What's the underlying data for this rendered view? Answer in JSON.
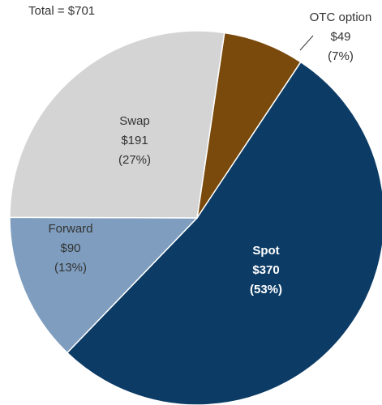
{
  "chart_data": {
    "type": "pie",
    "title": "Total = $701",
    "categories": [
      "OTC option",
      "Spot",
      "Forward",
      "Swap"
    ],
    "values": [
      49,
      370,
      90,
      191
    ],
    "value_labels": [
      "$49",
      "$370",
      "$90",
      "$191"
    ],
    "shares": [
      7,
      53,
      13,
      27
    ],
    "share_labels": [
      "(7%)",
      "(53%)",
      "(13%)",
      "(27%)"
    ],
    "colors": [
      "#7a4a0c",
      "#0c3b65",
      "#7f9ebf",
      "#d4d4d4"
    ]
  }
}
